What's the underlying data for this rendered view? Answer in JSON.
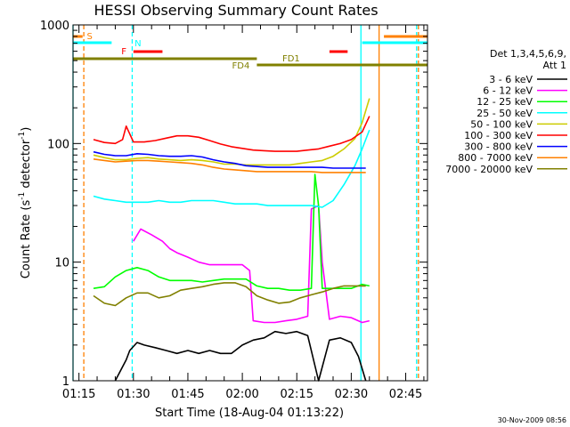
{
  "chart_data": {
    "type": "line",
    "title": "HESSI Observing Summary Count Rates",
    "xlabel": "Start Time (18-Aug-04 01:13:22)",
    "ylabel_parts": [
      "Count Rate (s",
      "-1",
      " detector",
      "-1",
      ")"
    ],
    "yscale": "log",
    "ylim": [
      1,
      1000
    ],
    "xlim": [
      "01:13:22",
      "02:51:00"
    ],
    "grid": false,
    "legend_position": "right",
    "x_ticks": [
      "01:15",
      "01:30",
      "01:45",
      "02:00",
      "02:15",
      "02:30",
      "02:45"
    ],
    "y_ticks": [
      "1",
      "10",
      "100",
      "1000"
    ],
    "legend_title": [
      "Det 1,3,4,5,6,9,",
      "Att 1"
    ],
    "timestamp": "30-Nov-2009 08:56",
    "series": [
      {
        "name": "3 - 6 keV",
        "color": "#000000",
        "x": [
          "01:25",
          "01:28",
          "01:29",
          "01:31",
          "01:33",
          "01:36",
          "01:39",
          "01:42",
          "01:45",
          "01:48",
          "01:51",
          "01:54",
          "01:57",
          "02:00",
          "02:03",
          "02:06",
          "02:09",
          "02:12",
          "02:15",
          "02:18",
          "02:21",
          "02:24",
          "02:27",
          "02:30",
          "02:32",
          "02:34"
        ],
        "y": [
          1.0,
          1.5,
          1.8,
          2.1,
          2.0,
          1.9,
          1.8,
          1.7,
          1.8,
          1.7,
          1.8,
          1.7,
          1.7,
          2.0,
          2.2,
          2.3,
          2.6,
          2.5,
          2.6,
          2.4,
          1.0,
          2.2,
          2.3,
          2.1,
          1.6,
          1.0
        ]
      },
      {
        "name": "6 - 12 keV",
        "color": "#ff00ff",
        "x": [
          "01:30",
          "01:32",
          "01:35",
          "01:38",
          "01:40",
          "01:42",
          "01:45",
          "01:48",
          "01:51",
          "01:54",
          "01:57",
          "02:00",
          "02:02",
          "02:03",
          "02:06",
          "02:09",
          "02:12",
          "02:15",
          "02:18",
          "02:19",
          "02:21",
          "02:22",
          "02:24",
          "02:27",
          "02:30",
          "02:33",
          "02:35"
        ],
        "y": [
          15,
          19,
          17,
          15,
          13,
          12,
          11,
          10,
          9.5,
          9.5,
          9.5,
          9.5,
          8.5,
          3.2,
          3.1,
          3.1,
          3.2,
          3.3,
          3.5,
          28,
          30,
          10,
          3.3,
          3.5,
          3.4,
          3.1,
          3.2
        ]
      },
      {
        "name": "12 - 25 keV",
        "color": "#00ff00",
        "x": [
          "01:19",
          "01:22",
          "01:25",
          "01:28",
          "01:31",
          "01:34",
          "01:37",
          "01:40",
          "01:43",
          "01:46",
          "01:49",
          "01:52",
          "01:55",
          "01:58",
          "02:01",
          "02:04",
          "02:07",
          "02:10",
          "02:13",
          "02:16",
          "02:19",
          "02:20",
          "02:21",
          "02:22",
          "02:24",
          "02:27",
          "02:30",
          "02:33",
          "02:35"
        ],
        "y": [
          6.0,
          6.2,
          7.5,
          8.5,
          9.0,
          8.5,
          7.5,
          7.0,
          7.0,
          7.0,
          6.8,
          7.0,
          7.2,
          7.2,
          7.2,
          6.3,
          6.0,
          6.0,
          5.8,
          5.8,
          6.0,
          55,
          30,
          6.0,
          6.0,
          6.0,
          6.0,
          6.5,
          6.3
        ]
      },
      {
        "name": "25 - 50 keV",
        "color": "#00ffff",
        "x": [
          "01:19",
          "01:22",
          "01:25",
          "01:28",
          "01:31",
          "01:34",
          "01:37",
          "01:40",
          "01:43",
          "01:46",
          "01:49",
          "01:52",
          "01:55",
          "01:58",
          "02:01",
          "02:04",
          "02:07",
          "02:10",
          "02:13",
          "02:16",
          "02:19",
          "02:22",
          "02:25",
          "02:28",
          "02:31",
          "02:33",
          "02:35"
        ],
        "y": [
          36,
          34,
          33,
          32,
          32,
          32,
          33,
          32,
          32,
          33,
          33,
          33,
          32,
          31,
          31,
          31,
          30,
          30,
          30,
          30,
          30,
          29,
          33,
          45,
          65,
          90,
          130
        ]
      },
      {
        "name": "50 - 100 keV",
        "color": "#cccc00",
        "x": [
          "01:19",
          "01:22",
          "01:25",
          "01:28",
          "01:31",
          "01:34",
          "01:37",
          "01:40",
          "01:43",
          "01:46",
          "01:49",
          "01:52",
          "01:55",
          "01:58",
          "02:01",
          "02:04",
          "02:07",
          "02:10",
          "02:13",
          "02:16",
          "02:19",
          "02:22",
          "02:25",
          "02:28",
          "02:31",
          "02:33",
          "02:35"
        ],
        "y": [
          80,
          76,
          73,
          73,
          75,
          76,
          74,
          73,
          72,
          73,
          72,
          70,
          67,
          67,
          66,
          66,
          66,
          66,
          66,
          68,
          70,
          72,
          78,
          90,
          110,
          150,
          240
        ]
      },
      {
        "name": "100 - 300 keV",
        "color": "#ff0000",
        "x": [
          "01:19",
          "01:22",
          "01:25",
          "01:27",
          "01:28",
          "01:30",
          "01:33",
          "01:36",
          "01:39",
          "01:42",
          "01:45",
          "01:48",
          "01:51",
          "01:54",
          "01:57",
          "02:00",
          "02:03",
          "02:06",
          "02:09",
          "02:12",
          "02:15",
          "02:18",
          "02:21",
          "02:24",
          "02:27",
          "02:30",
          "02:33",
          "02:35"
        ],
        "y": [
          108,
          102,
          100,
          108,
          140,
          103,
          103,
          106,
          111,
          116,
          116,
          113,
          106,
          99,
          94,
          91,
          88,
          87,
          86,
          86,
          86,
          88,
          90,
          95,
          100,
          108,
          125,
          170
        ]
      },
      {
        "name": "300 - 800 keV",
        "color": "#0000ff",
        "x": [
          "01:19",
          "01:22",
          "01:25",
          "01:28",
          "01:31",
          "01:34",
          "01:37",
          "01:40",
          "01:43",
          "01:46",
          "01:49",
          "01:52",
          "01:55",
          "01:58",
          "02:01",
          "02:04",
          "02:07",
          "02:10",
          "02:13",
          "02:16",
          "02:19",
          "02:22",
          "02:25",
          "02:28",
          "02:31",
          "02:34"
        ],
        "y": [
          85,
          81,
          79,
          79,
          82,
          81,
          79,
          78,
          78,
          79,
          77,
          73,
          70,
          68,
          65,
          64,
          63,
          63,
          63,
          63,
          63,
          63,
          62,
          62,
          62,
          62
        ]
      },
      {
        "name": "800 - 7000 keV",
        "color": "#ff8000",
        "x": [
          "01:19",
          "01:22",
          "01:25",
          "01:28",
          "01:31",
          "01:34",
          "01:37",
          "01:40",
          "01:43",
          "01:46",
          "01:49",
          "01:52",
          "01:55",
          "01:58",
          "02:01",
          "02:04",
          "02:07",
          "02:10",
          "02:13",
          "02:16",
          "02:19",
          "02:22",
          "02:25",
          "02:28",
          "02:31",
          "02:34"
        ],
        "y": [
          74,
          72,
          70,
          71,
          72,
          72,
          71,
          70,
          69,
          68,
          66,
          63,
          61,
          60,
          59,
          58,
          58,
          58,
          58,
          58,
          58,
          57,
          57,
          57,
          57,
          57
        ]
      },
      {
        "name": "7000 - 20000 keV",
        "color": "#808000",
        "x": [
          "01:19",
          "01:22",
          "01:25",
          "01:28",
          "01:31",
          "01:34",
          "01:37",
          "01:40",
          "01:43",
          "01:46",
          "01:49",
          "01:52",
          "01:55",
          "01:58",
          "02:01",
          "02:04",
          "02:07",
          "02:10",
          "02:13",
          "02:16",
          "02:19",
          "02:22",
          "02:25",
          "02:28",
          "02:31",
          "02:34"
        ],
        "y": [
          5.2,
          4.5,
          4.3,
          5.0,
          5.5,
          5.5,
          5.0,
          5.2,
          5.8,
          6.0,
          6.2,
          6.5,
          6.7,
          6.7,
          6.2,
          5.2,
          4.8,
          4.5,
          4.6,
          5.0,
          5.3,
          5.6,
          6.0,
          6.3,
          6.3,
          6.3
        ]
      }
    ],
    "flag_labels": [
      {
        "label": "S",
        "color": "#ff8000"
      },
      {
        "label": "N",
        "color": "#00ffff"
      },
      {
        "label": "F",
        "color": "#ff0000"
      },
      {
        "label": "FD1",
        "color": "#808000"
      },
      {
        "label": "FD4",
        "color": "#808000"
      }
    ],
    "flag_bars": [
      {
        "color": "#ff8000",
        "from": "01:13:22",
        "to": "01:16:00"
      },
      {
        "color": "#ff8000",
        "from": "02:39:00",
        "to": "02:51:00"
      },
      {
        "color": "#00ffff",
        "from": "01:13:22",
        "to": "01:24:00"
      },
      {
        "color": "#00ffff",
        "from": "02:33:00",
        "to": "02:51:00"
      },
      {
        "color": "#ff0000",
        "from": "01:30:00",
        "to": "01:38:00"
      },
      {
        "color": "#ff0000",
        "from": "02:24:00",
        "to": "02:29:00"
      },
      {
        "color": "#808000",
        "from": "01:13:22",
        "to": "02:04:00"
      },
      {
        "color": "#808000",
        "from": "02:04:00",
        "to": "02:51:00"
      }
    ],
    "vertical_lines": [
      {
        "color": "#00ffff",
        "style": "solid",
        "at": "01:13:22"
      },
      {
        "color": "#ff8000",
        "style": "dashed",
        "at": "01:16:20"
      },
      {
        "color": "#00ffff",
        "style": "dashed",
        "at": "01:29:40"
      },
      {
        "color": "#00ffff",
        "style": "solid",
        "at": "02:32:40"
      },
      {
        "color": "#ff8000",
        "style": "solid",
        "at": "02:37:40"
      },
      {
        "color": "#00ffff",
        "style": "dashed",
        "at": "02:48:00"
      },
      {
        "color": "#ff8000",
        "style": "dashed",
        "at": "02:48:30"
      }
    ]
  }
}
